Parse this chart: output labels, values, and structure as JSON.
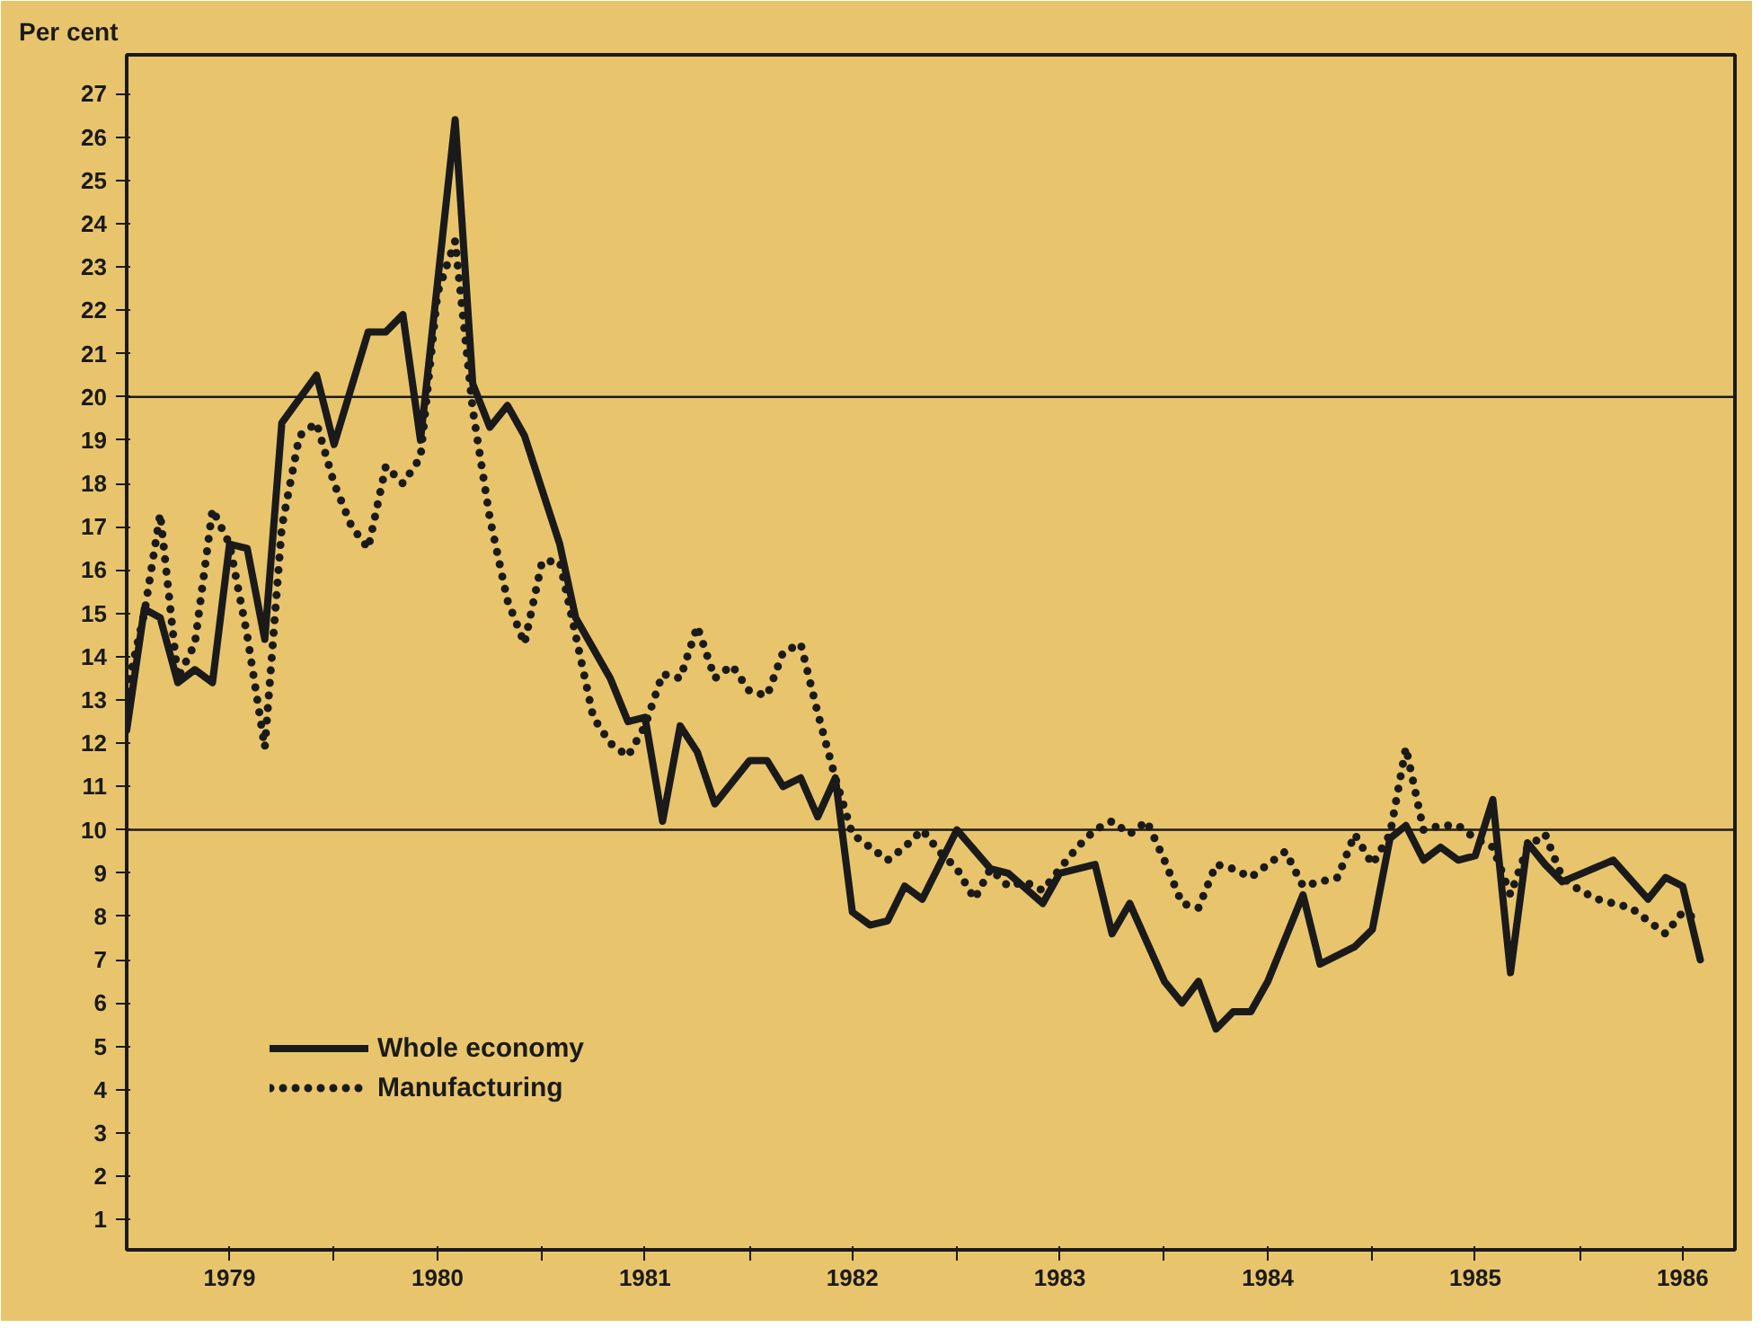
{
  "chart_data": {
    "type": "line",
    "ylabel": "Per cent",
    "xlim": [
      "1979-01",
      "1986-10"
    ],
    "ylim": [
      0.3,
      27.9
    ],
    "xticks": [
      {
        "value": "1979-07",
        "label": "1979"
      },
      {
        "value": "1980-01",
        "label": null
      },
      {
        "value": "1980-07",
        "label": "1980"
      },
      {
        "value": "1981-01",
        "label": null
      },
      {
        "value": "1981-07",
        "label": "1981"
      },
      {
        "value": "1982-01",
        "label": null
      },
      {
        "value": "1982-07",
        "label": "1982"
      },
      {
        "value": "1983-01",
        "label": null
      },
      {
        "value": "1983-07",
        "label": "1983"
      },
      {
        "value": "1984-01",
        "label": null
      },
      {
        "value": "1984-07",
        "label": "1984"
      },
      {
        "value": "1985-01",
        "label": null
      },
      {
        "value": "1985-07",
        "label": "1985"
      },
      {
        "value": "1986-01",
        "label": null
      },
      {
        "value": "1986-07",
        "label": "1986"
      }
    ],
    "yticks": [
      1,
      2,
      3,
      4,
      5,
      6,
      7,
      8,
      9,
      10,
      11,
      12,
      13,
      14,
      15,
      16,
      17,
      18,
      19,
      20,
      21,
      22,
      23,
      24,
      25,
      26,
      27
    ],
    "grid": false,
    "legend": "bottom left",
    "marker": "none",
    "ref_lines": [
      {
        "axis": "y",
        "value": 10,
        "label": null,
        "color": "#1a1a1a"
      },
      {
        "axis": "y",
        "value": 20,
        "label": null,
        "color": "#1a1a1a"
      }
    ],
    "series": [
      {
        "name": "Whole economy",
        "color": "#1a1a1a",
        "line_style": "solid",
        "x": [
          "1979-01",
          "1979-02",
          "1979-03",
          "1979-04",
          "1979-05",
          "1979-06",
          "1979-07",
          "1979-08",
          "1979-09",
          "1979-10",
          "1979-12",
          "1980-01",
          "1980-03",
          "1980-04",
          "1980-05",
          "1980-06",
          "1980-08",
          "1980-09",
          "1980-10",
          "1980-11",
          "1980-12",
          "1981-02",
          "1981-03",
          "1981-05",
          "1981-06",
          "1981-07",
          "1981-08",
          "1981-09",
          "1981-10",
          "1981-11",
          "1982-01",
          "1982-02",
          "1982-03",
          "1982-04",
          "1982-05",
          "1982-06",
          "1982-07",
          "1982-08",
          "1982-09",
          "1982-10",
          "1982-11",
          "1983-01",
          "1983-03",
          "1983-04",
          "1983-06",
          "1983-07",
          "1983-09",
          "1983-10",
          "1983-11",
          "1984-01",
          "1984-02",
          "1984-03",
          "1984-04",
          "1984-05",
          "1984-06",
          "1984-07",
          "1984-09",
          "1984-10",
          "1984-12",
          "1985-01",
          "1985-02",
          "1985-03",
          "1985-04",
          "1985-05",
          "1985-06",
          "1985-07",
          "1985-08",
          "1985-09",
          "1985-10",
          "1985-11",
          "1985-12",
          "1986-03",
          "1986-05",
          "1986-06",
          "1986-07",
          "1986-08"
        ],
        "values": [
          12.3,
          15.1,
          14.9,
          13.4,
          13.7,
          13.4,
          16.6,
          16.5,
          14.4,
          19.4,
          20.5,
          18.9,
          21.5,
          21.5,
          21.9,
          19.0,
          26.4,
          20.3,
          19.3,
          19.8,
          19.1,
          16.6,
          14.9,
          13.5,
          12.5,
          12.6,
          10.2,
          12.4,
          11.8,
          10.6,
          11.6,
          11.6,
          11.0,
          11.2,
          10.3,
          11.2,
          8.1,
          7.8,
          7.9,
          8.7,
          8.4,
          10.0,
          9.1,
          9.0,
          8.3,
          9.0,
          9.2,
          7.6,
          8.3,
          6.5,
          6.0,
          6.5,
          5.4,
          5.8,
          5.8,
          6.5,
          8.5,
          6.9,
          7.3,
          7.7,
          9.8,
          10.1,
          9.3,
          9.6,
          9.3,
          9.4,
          10.7,
          6.7,
          9.7,
          9.2,
          8.8,
          9.3,
          8.4,
          8.9,
          8.7,
          7.0
        ]
      },
      {
        "name": "Manufacturing",
        "color": "#1a1a1a",
        "line_style": "dotted",
        "x": [
          "1979-01",
          "1979-02",
          "1979-03",
          "1979-04",
          "1979-05",
          "1979-06",
          "1979-07",
          "1979-08",
          "1979-09",
          "1979-10",
          "1979-11",
          "1979-12",
          "1980-01",
          "1980-02",
          "1980-03",
          "1980-04",
          "1980-05",
          "1980-06",
          "1980-07",
          "1980-08",
          "1980-09",
          "1980-10",
          "1980-11",
          "1980-12",
          "1981-01",
          "1981-02",
          "1981-03",
          "1981-04",
          "1981-05",
          "1981-06",
          "1981-07",
          "1981-08",
          "1981-09",
          "1981-10",
          "1981-11",
          "1981-12",
          "1982-01",
          "1982-02",
          "1982-03",
          "1982-04",
          "1982-05",
          "1982-06",
          "1982-07",
          "1982-08",
          "1982-09",
          "1982-10",
          "1982-11",
          "1982-12",
          "1983-01",
          "1983-02",
          "1983-03",
          "1983-04",
          "1983-05",
          "1983-06",
          "1983-07",
          "1983-08",
          "1983-09",
          "1983-10",
          "1983-11",
          "1983-12",
          "1984-01",
          "1984-02",
          "1984-03",
          "1984-04",
          "1984-05",
          "1984-06",
          "1984-07",
          "1984-08",
          "1984-09",
          "1984-10",
          "1984-11",
          "1984-12",
          "1985-01",
          "1985-02",
          "1985-03",
          "1985-04",
          "1985-05",
          "1985-06",
          "1985-07",
          "1985-08",
          "1985-09",
          "1985-10",
          "1985-11",
          "1985-12",
          "1986-01",
          "1986-02",
          "1986-03",
          "1986-04",
          "1986-05",
          "1986-06",
          "1986-07",
          "1986-08"
        ],
        "values": [
          13.2,
          15.0,
          17.3,
          13.5,
          14.3,
          17.4,
          16.6,
          14.5,
          11.9,
          17.0,
          19.1,
          19.4,
          18.0,
          17.0,
          16.5,
          18.4,
          18.0,
          18.6,
          22.4,
          23.6,
          19.7,
          17.2,
          15.3,
          14.3,
          16.2,
          16.2,
          14.5,
          12.6,
          12.0,
          11.7,
          12.4,
          13.6,
          13.5,
          14.7,
          13.5,
          13.8,
          13.2,
          13.1,
          14.1,
          14.3,
          12.7,
          11.2,
          9.9,
          9.6,
          9.3,
          9.6,
          10.0,
          9.5,
          9.1,
          8.4,
          9.1,
          8.7,
          8.8,
          8.6,
          9.1,
          9.6,
          10.0,
          10.2,
          9.9,
          10.2,
          9.3,
          8.3,
          8.2,
          9.2,
          9.1,
          8.9,
          9.2,
          9.5,
          8.7,
          8.8,
          8.9,
          9.9,
          9.2,
          9.9,
          11.9,
          10.0,
          10.1,
          10.1,
          9.8,
          9.6,
          8.5,
          9.6,
          9.9,
          8.9,
          8.6,
          8.4,
          8.3,
          8.2,
          7.9,
          7.6,
          8.1,
          7.9
        ]
      }
    ]
  }
}
